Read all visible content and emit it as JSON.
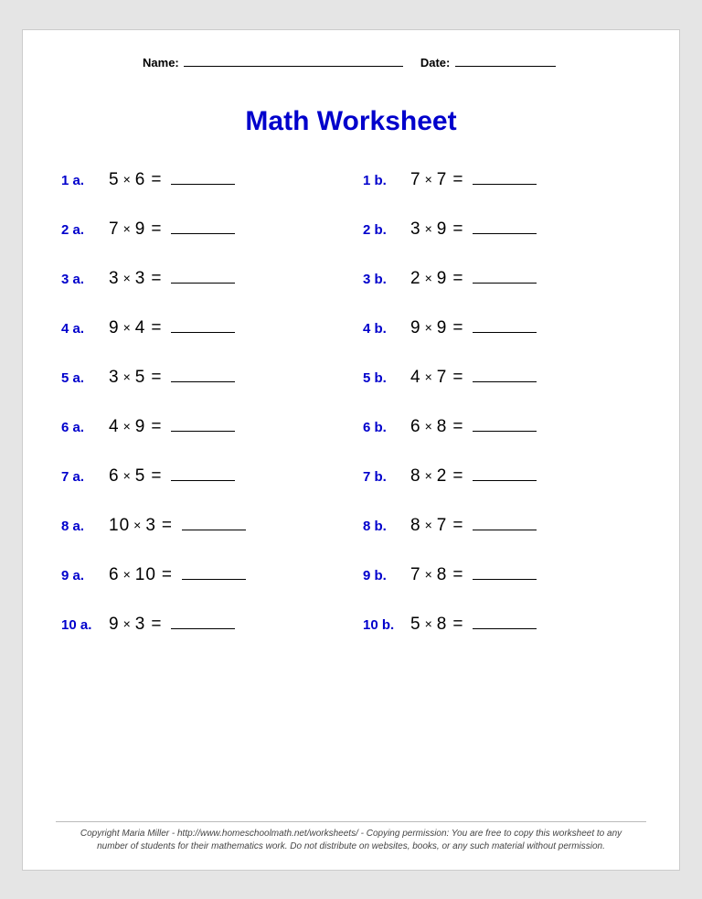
{
  "header": {
    "name_label": "Name:",
    "date_label": "Date:",
    "name_blank_width": 240,
    "date_blank_width": 110
  },
  "title": "Math Worksheet",
  "colors": {
    "accent": "#0000cc",
    "text": "#000000",
    "background": "#ffffff",
    "page_bg": "#e5e5e5"
  },
  "typography": {
    "title_fontsize": 30,
    "qnum_fontsize": 15,
    "expr_fontsize": 19,
    "footer_fontsize": 10
  },
  "operator": "×",
  "equals": "=",
  "problems": [
    {
      "a": {
        "label": "1 a.",
        "lhs": 5,
        "rhs": 6
      },
      "b": {
        "label": "1 b.",
        "lhs": 7,
        "rhs": 7
      }
    },
    {
      "a": {
        "label": "2 a.",
        "lhs": 7,
        "rhs": 9
      },
      "b": {
        "label": "2 b.",
        "lhs": 3,
        "rhs": 9
      }
    },
    {
      "a": {
        "label": "3 a.",
        "lhs": 3,
        "rhs": 3
      },
      "b": {
        "label": "3 b.",
        "lhs": 2,
        "rhs": 9
      }
    },
    {
      "a": {
        "label": "4 a.",
        "lhs": 9,
        "rhs": 4
      },
      "b": {
        "label": "4 b.",
        "lhs": 9,
        "rhs": 9
      }
    },
    {
      "a": {
        "label": "5 a.",
        "lhs": 3,
        "rhs": 5
      },
      "b": {
        "label": "5 b.",
        "lhs": 4,
        "rhs": 7
      }
    },
    {
      "a": {
        "label": "6 a.",
        "lhs": 4,
        "rhs": 9
      },
      "b": {
        "label": "6 b.",
        "lhs": 6,
        "rhs": 8
      }
    },
    {
      "a": {
        "label": "7 a.",
        "lhs": 6,
        "rhs": 5
      },
      "b": {
        "label": "7 b.",
        "lhs": 8,
        "rhs": 2
      }
    },
    {
      "a": {
        "label": "8 a.",
        "lhs": 10,
        "rhs": 3
      },
      "b": {
        "label": "8 b.",
        "lhs": 8,
        "rhs": 7
      }
    },
    {
      "a": {
        "label": "9 a.",
        "lhs": 6,
        "rhs": 10
      },
      "b": {
        "label": "9 b.",
        "lhs": 7,
        "rhs": 8
      }
    },
    {
      "a": {
        "label": "10 a.",
        "lhs": 9,
        "rhs": 3
      },
      "b": {
        "label": "10 b.",
        "lhs": 5,
        "rhs": 8
      }
    }
  ],
  "footer": {
    "line1": "Copyright Maria Miller - http://www.homeschoolmath.net/worksheets/ - Copying permission: You are free to copy this worksheet to any",
    "line2": "number of students for their mathematics work. Do not distribute on websites, books, or any such material without permission."
  }
}
